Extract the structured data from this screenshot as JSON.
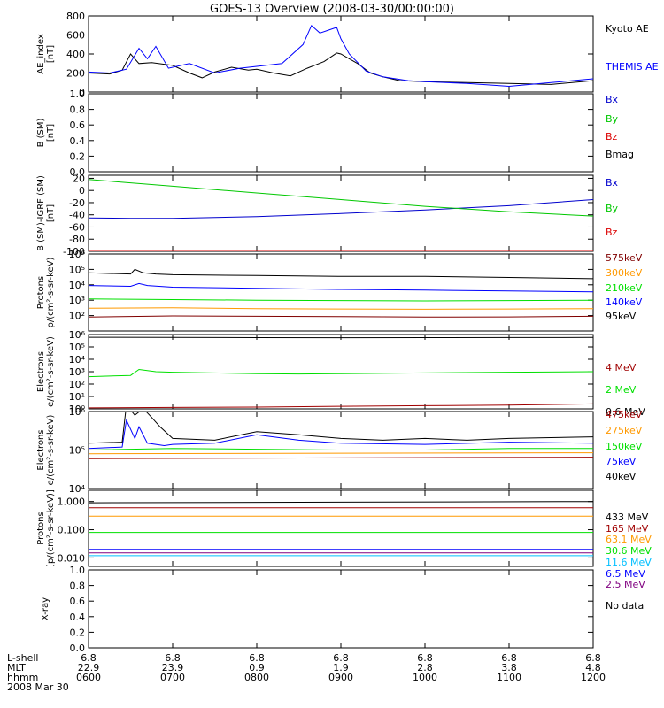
{
  "title": "GOES-13 Overview (2008-03-30/00:00:00)",
  "footer": {
    "row_labels": [
      "L-shell",
      "MLT",
      "hhmm",
      "2008 Mar 30"
    ],
    "ticks": [
      {
        "lshell": "6.8",
        "mlt": "22.9",
        "hhmm": "0600"
      },
      {
        "lshell": "6.8",
        "mlt": "23.9",
        "hhmm": "0700"
      },
      {
        "lshell": "6.8",
        "mlt": "0.9",
        "hhmm": "0800"
      },
      {
        "lshell": "6.8",
        "mlt": "1.9",
        "hhmm": "0900"
      },
      {
        "lshell": "6.8",
        "mlt": "2.8",
        "hhmm": "1000"
      },
      {
        "lshell": "6.8",
        "mlt": "3.8",
        "hhmm": "1100"
      },
      {
        "lshell": "6.8",
        "mlt": "4.8",
        "hhmm": "1200"
      }
    ]
  },
  "chart_data": [
    {
      "type": "line",
      "ylabel": [
        "AE_index",
        "[nT]"
      ],
      "scale": "linear",
      "ylim": [
        0,
        800
      ],
      "yticks": [
        0,
        200,
        400,
        600,
        800
      ],
      "ytick_labels": [
        "0",
        "200",
        "400",
        "600",
        "800"
      ],
      "series": [
        {
          "name": "Kyoto AE",
          "color": "#000000",
          "x": [
            0,
            0.25,
            0.4,
            0.5,
            0.6,
            0.75,
            1.0,
            1.2,
            1.35,
            1.5,
            1.7,
            1.9,
            2.0,
            2.2,
            2.4,
            2.6,
            2.8,
            2.95,
            3.0,
            3.1,
            3.2,
            3.35,
            3.5,
            3.7,
            4.0,
            4.5,
            5.0,
            5.5,
            6.0
          ],
          "values": [
            200,
            190,
            230,
            400,
            300,
            310,
            280,
            200,
            150,
            210,
            260,
            230,
            240,
            200,
            170,
            250,
            320,
            410,
            400,
            350,
            300,
            200,
            160,
            120,
            110,
            100,
            90,
            80,
            120
          ]
        },
        {
          "name": "THEMIS AE",
          "color": "#0000ff",
          "x": [
            0,
            0.25,
            0.45,
            0.6,
            0.7,
            0.8,
            0.95,
            1.2,
            1.5,
            1.8,
            2.0,
            2.3,
            2.55,
            2.65,
            2.75,
            2.85,
            2.95,
            3.0,
            3.1,
            3.3,
            3.5,
            3.8,
            4.0,
            4.5,
            5.0,
            5.5,
            6.0
          ],
          "values": [
            210,
            200,
            240,
            460,
            350,
            480,
            250,
            300,
            200,
            250,
            270,
            300,
            500,
            700,
            620,
            650,
            680,
            560,
            400,
            220,
            160,
            120,
            110,
            90,
            60,
            100,
            140
          ]
        }
      ]
    },
    {
      "type": "line",
      "ylabel": [
        "B (SM)",
        "[nT]"
      ],
      "scale": "linear",
      "ylim": [
        0,
        1.0
      ],
      "yticks": [
        0,
        0.2,
        0.4,
        0.6,
        0.8,
        1.0
      ],
      "ytick_labels": [
        "0.0",
        "0.2",
        "0.4",
        "0.6",
        "0.8",
        "1.0"
      ],
      "series": [
        {
          "name": "Bx",
          "color": "#0000cd",
          "x": [],
          "values": []
        },
        {
          "name": "By",
          "color": "#00c800",
          "x": [],
          "values": []
        },
        {
          "name": "Bz",
          "color": "#dc0000",
          "x": [],
          "values": []
        },
        {
          "name": "Bmag",
          "color": "#000000",
          "x": [],
          "values": []
        }
      ]
    },
    {
      "type": "line",
      "ylabel": [
        "B (SM)-IGRF (SM)",
        "[nT]"
      ],
      "scale": "linear",
      "ylim": [
        -100,
        25
      ],
      "yticks": [
        -100,
        -80,
        -60,
        -40,
        -20,
        0,
        20
      ],
      "ytick_labels": [
        "-100",
        "-80",
        "-60",
        "-40",
        "-20",
        "0",
        "20"
      ],
      "series": [
        {
          "name": "Bx",
          "color": "#0000cd",
          "x": [
            0,
            0.5,
            1.0,
            2.0,
            3.0,
            4.0,
            5.0,
            6.0
          ],
          "values": [
            -45,
            -46,
            -46,
            -43,
            -38,
            -32,
            -25,
            -15
          ]
        },
        {
          "name": "By",
          "color": "#00c800",
          "x": [
            0,
            1,
            2,
            3,
            4,
            5,
            6
          ],
          "values": [
            18,
            7,
            -4,
            -15,
            -26,
            -35,
            -42
          ]
        },
        {
          "name": "Bz",
          "color": "#dc0000",
          "x": [
            0,
            6
          ],
          "values": [
            -100,
            -100
          ]
        }
      ]
    },
    {
      "type": "line",
      "ylabel": [
        "Protons",
        "p/(cm²-s-sr-keV)"
      ],
      "scale": "log",
      "ylim": [
        10,
        1000000
      ],
      "yticks": [
        100,
        1000,
        10000,
        100000,
        1000000
      ],
      "ytick_labels": [
        "10²",
        "10³",
        "10⁴",
        "10⁵",
        "10⁶"
      ],
      "series": [
        {
          "name": "575keV",
          "color": "#800000",
          "x": [
            0,
            1,
            2,
            3,
            4,
            5,
            6
          ],
          "values": [
            80,
            95,
            90,
            85,
            80,
            82,
            90
          ]
        },
        {
          "name": "300keV",
          "color": "#ff9900",
          "x": [
            0,
            1,
            2,
            3,
            4,
            5,
            6
          ],
          "values": [
            300,
            320,
            280,
            270,
            260,
            270,
            280
          ]
        },
        {
          "name": "210keV",
          "color": "#00e000",
          "x": [
            0,
            1,
            2,
            3,
            4,
            5,
            6
          ],
          "values": [
            1200,
            1100,
            1000,
            950,
            900,
            950,
            1000
          ]
        },
        {
          "name": "140keV",
          "color": "#0000ff",
          "x": [
            0,
            0.5,
            0.6,
            0.7,
            1,
            2,
            3,
            4,
            5,
            6
          ],
          "values": [
            9000,
            8000,
            12000,
            9000,
            7000,
            6000,
            5000,
            4500,
            4000,
            3500
          ]
        },
        {
          "name": "95keV",
          "color": "#000000",
          "x": [
            0,
            0.5,
            0.55,
            0.65,
            0.8,
            1,
            2,
            3,
            4,
            5,
            6
          ],
          "values": [
            60000,
            50000,
            100000,
            60000,
            50000,
            45000,
            40000,
            35000,
            35000,
            30000,
            25000
          ]
        }
      ]
    },
    {
      "type": "line",
      "ylabel": [
        "Electrons",
        "e/(cm²-s-sr-keV)"
      ],
      "scale": "log",
      "ylim": [
        1,
        1000000
      ],
      "yticks": [
        1,
        10,
        100,
        1000,
        10000,
        100000,
        1000000
      ],
      "ytick_labels": [
        "10⁰",
        "10¹",
        "10²",
        "10³",
        "10⁴",
        "10⁵",
        "10⁶"
      ],
      "series": [
        {
          "name": "4 MeV",
          "color": "#a00000",
          "x": [
            0,
            1,
            2,
            3,
            4,
            5,
            6
          ],
          "values": [
            1.2,
            1.3,
            1.4,
            1.6,
            1.8,
            2.0,
            2.5
          ]
        },
        {
          "name": "2 MeV",
          "color": "#00e000",
          "x": [
            0,
            0.5,
            0.6,
            0.8,
            1,
            2,
            2.5,
            3,
            4,
            5,
            6
          ],
          "values": [
            400,
            500,
            1500,
            1000,
            900,
            700,
            650,
            700,
            800,
            900,
            1000
          ]
        },
        {
          "name": "0.6 MeV",
          "color": "#000000",
          "x": [
            0,
            1,
            2,
            3,
            4,
            5,
            6
          ],
          "values": [
            600000,
            580000,
            560000,
            550000,
            560000,
            570000,
            580000
          ]
        }
      ]
    },
    {
      "type": "line",
      "ylabel": [
        "Electrons",
        "e/(cm²-s-sr-keV)"
      ],
      "scale": "log",
      "ylim": [
        10000,
        1000000
      ],
      "yticks": [
        10000,
        100000,
        1000000
      ],
      "ytick_labels": [
        "10⁴",
        "10⁵",
        "10⁶"
      ],
      "series": [
        {
          "name": "475keV",
          "color": "#a00000",
          "x": [
            0,
            6
          ],
          "values": [
            60000,
            65000
          ]
        },
        {
          "name": "275keV",
          "color": "#ff9900",
          "x": [
            0,
            6
          ],
          "values": [
            80000,
            85000
          ]
        },
        {
          "name": "150keV",
          "color": "#00e000",
          "x": [
            0,
            1,
            2,
            3,
            4,
            5,
            6
          ],
          "values": [
            100000,
            110000,
            105000,
            100000,
            100000,
            110000,
            110000
          ]
        },
        {
          "name": "75keV",
          "color": "#0000ff",
          "x": [
            0,
            0.4,
            0.45,
            0.55,
            0.6,
            0.7,
            0.9,
            1,
            1.5,
            2,
            2.5,
            3,
            4,
            5,
            6
          ],
          "values": [
            110000,
            120000,
            600000,
            200000,
            400000,
            150000,
            130000,
            140000,
            150000,
            250000,
            180000,
            150000,
            140000,
            160000,
            150000
          ]
        },
        {
          "name": "40keV",
          "color": "#000000",
          "x": [
            0,
            0.4,
            0.45,
            0.55,
            0.65,
            0.75,
            0.85,
            1,
            1.5,
            2,
            2.5,
            3,
            3.5,
            4,
            4.5,
            5,
            6
          ],
          "values": [
            150000,
            160000,
            1500000,
            800000,
            1200000,
            700000,
            400000,
            200000,
            180000,
            300000,
            250000,
            200000,
            180000,
            200000,
            180000,
            200000,
            220000
          ]
        }
      ]
    },
    {
      "type": "line",
      "ylabel": [
        "Protons",
        "[p/(cm²-s-sr-keV)]"
      ],
      "scale": "log",
      "ylim": [
        0.005,
        2.5
      ],
      "yticks": [
        0.01,
        0.1,
        1.0
      ],
      "ytick_labels": [
        "0.010",
        "0.100",
        "1.000"
      ],
      "series": [
        {
          "name": "433 MeV",
          "color": "#000000",
          "x": [
            0,
            6
          ],
          "values": [
            0.9,
            1.0
          ]
        },
        {
          "name": "165 MeV",
          "color": "#a00000",
          "x": [
            0,
            6
          ],
          "values": [
            0.6,
            0.6
          ]
        },
        {
          "name": "63.1 MeV",
          "color": "#ff9900",
          "x": [
            0,
            6
          ],
          "values": [
            0.3,
            0.3
          ]
        },
        {
          "name": "30.6 MeV",
          "color": "#00e000",
          "x": [
            0,
            6
          ],
          "values": [
            0.08,
            0.08
          ]
        },
        {
          "name": "11.6 MeV",
          "color": "#00bfff",
          "x": [
            0,
            6
          ],
          "values": [
            0.012,
            0.012
          ]
        },
        {
          "name": "6.5 MeV",
          "color": "#0000ff",
          "x": [
            0,
            6
          ],
          "values": [
            0.02,
            0.02
          ]
        },
        {
          "name": "2.5 MeV",
          "color": "#800080",
          "x": [
            0,
            6
          ],
          "values": [
            0.015,
            0.015
          ]
        }
      ]
    },
    {
      "type": "line",
      "ylabel": [
        "X-ray"
      ],
      "scale": "linear",
      "ylim": [
        0,
        1.0
      ],
      "yticks": [
        0,
        0.2,
        0.4,
        0.6,
        0.8,
        1.0
      ],
      "ytick_labels": [
        "0.0",
        "0.2",
        "0.4",
        "0.6",
        "0.8",
        "1.0"
      ],
      "series": [],
      "note": "No data"
    }
  ]
}
